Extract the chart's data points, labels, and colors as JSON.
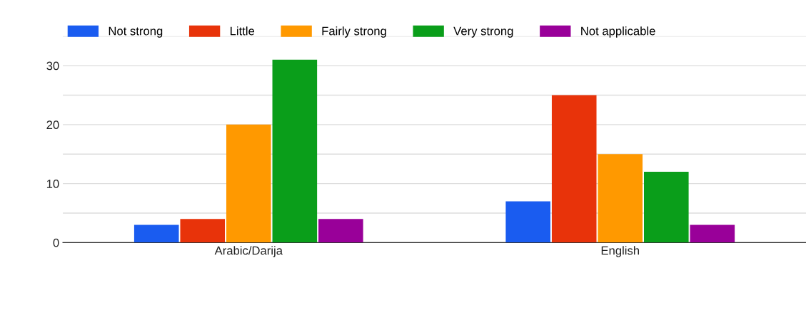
{
  "chart_data": {
    "type": "bar",
    "categories": [
      "Arabic/Darija",
      "English"
    ],
    "series": [
      {
        "name": "Not strong",
        "color": "#1a5cf0",
        "values": [
          3,
          7
        ]
      },
      {
        "name": "Little",
        "color": "#e8330a",
        "values": [
          4,
          25
        ]
      },
      {
        "name": "Fairly strong",
        "color": "#ff9900",
        "values": [
          20,
          15
        ]
      },
      {
        "name": "Very strong",
        "color": "#0a9e1a",
        "values": [
          31,
          12
        ]
      },
      {
        "name": "Not applicable",
        "color": "#990099",
        "values": [
          4,
          3
        ]
      }
    ],
    "ylim": [
      0,
      35
    ],
    "yticks": [
      0,
      {
        "value": 5,
        "label": null
      },
      10,
      {
        "value": 15,
        "label": null
      },
      20,
      {
        "value": 25,
        "label": null
      },
      30,
      {
        "value": 35,
        "label": null
      }
    ],
    "grid": "y",
    "legend": "top left"
  }
}
